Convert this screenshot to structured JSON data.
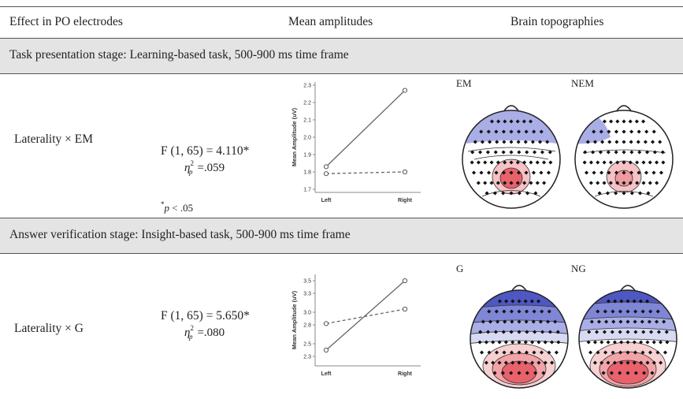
{
  "header": {
    "col1": "Effect in PO electrodes",
    "col2": "Mean amplitudes",
    "col3": "Brain topographies"
  },
  "sections": [
    {
      "title": "Task presentation stage: Learning-based task, 500-900 ms time frame",
      "effect": "Laterality × EM",
      "stat": "F (1, 65) = 4.110*",
      "eta_value": "=.059",
      "note": "p < .05",
      "topo_labels": [
        "EM",
        "NEM"
      ]
    },
    {
      "title": "Answer verification stage: Insight-based task, 500-900 ms time frame",
      "effect": "Laterality × G",
      "stat": "F (1, 65) = 5.650*",
      "eta_value": "=.080",
      "topo_labels": [
        "G",
        "NG"
      ]
    }
  ],
  "chart_data": [
    {
      "type": "line",
      "ylabel": "Mean Amplitude (uV)",
      "categories": [
        "Left",
        "Right"
      ],
      "yticks": [
        "2.3",
        "2.2",
        "2.1",
        "2.0",
        "1.9",
        "1.8",
        "1.7"
      ],
      "ylim": [
        1.7,
        2.3
      ],
      "series": [
        {
          "style": "solid",
          "values": [
            1.83,
            2.27
          ]
        },
        {
          "style": "dashed",
          "values": [
            1.79,
            1.8
          ]
        }
      ]
    },
    {
      "type": "line",
      "ylabel": "Mean Amplitude (uV)",
      "categories": [
        "Left",
        "Right"
      ],
      "yticks": [
        "3.5",
        "3.3",
        "3.0",
        "2.8",
        "2.5",
        "2.3"
      ],
      "ylim": [
        2.2,
        3.55
      ],
      "series": [
        {
          "style": "solid",
          "values": [
            2.4,
            3.5
          ]
        },
        {
          "style": "dashed",
          "values": [
            2.82,
            3.05
          ]
        }
      ]
    }
  ],
  "colors": {
    "band": "#e4e4e4",
    "topo_blue": "#aaaee6",
    "topo_deep_blue": "#4f57c2",
    "topo_red": "#e8616b"
  }
}
